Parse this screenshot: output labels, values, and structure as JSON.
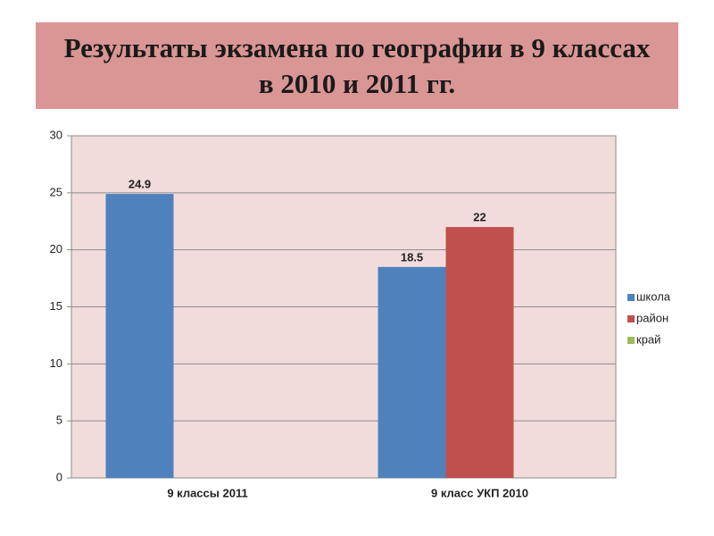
{
  "chart_data": {
    "type": "bar",
    "title": "Результаты экзамена по географии в 9 классах в 2010 и 2011 гг.",
    "categories": [
      "9 классы 2011",
      "9 класс УКП 2010"
    ],
    "series": [
      {
        "name": "школа",
        "color": "#4f81bd",
        "values": [
          24.9,
          18.5
        ]
      },
      {
        "name": "район",
        "color": "#c0504d",
        "values": [
          null,
          22
        ]
      },
      {
        "name": "край",
        "color": "#9bbb59",
        "values": [
          null,
          null
        ]
      }
    ],
    "ylim": [
      0,
      30
    ],
    "yticks": [
      0,
      5,
      10,
      15,
      20,
      25,
      30
    ],
    "grid": true,
    "legend": "right"
  }
}
